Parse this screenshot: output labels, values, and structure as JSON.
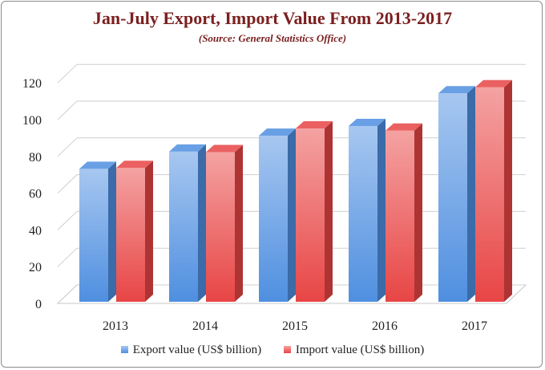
{
  "chart_data": {
    "type": "bar",
    "title": "Jan-July Export, Import Value From 2013-2017",
    "subtitle": "(Source: General Statistics Office)",
    "categories": [
      "2013",
      "2014",
      "2015",
      "2016",
      "2017"
    ],
    "series": [
      {
        "name": "Export value (US$ billion)",
        "values": [
          73.2,
          82.6,
          91.2,
          96.5,
          114.3
        ],
        "color": "#4f8fe0"
      },
      {
        "name": "Import value (US$ billion)",
        "values": [
          73.7,
          82.3,
          95.2,
          94.0,
          117.6
        ],
        "color": "#e84545"
      }
    ],
    "ylim": [
      0,
      120
    ],
    "yticks": [
      "0",
      "20",
      "40",
      "60",
      "80",
      "100",
      "120"
    ],
    "grid": true,
    "legend_position": "bottom",
    "style": "3d-column"
  }
}
